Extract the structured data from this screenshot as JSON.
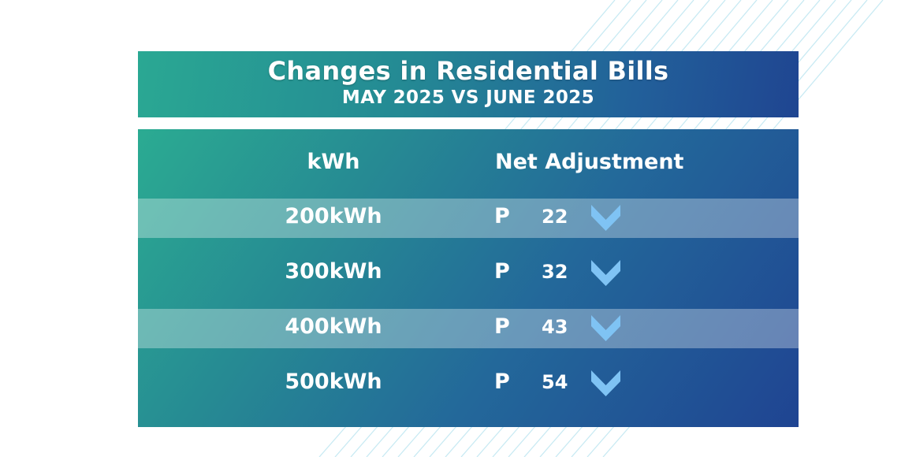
{
  "chart_data": {
    "type": "table",
    "title": "Changes in Residential Bills",
    "subtitle": "MAY 2025 VS JUNE 2025",
    "columns": [
      "kWh",
      "Net Adjustment"
    ],
    "rows": [
      {
        "kwh": "200kWh",
        "currency": "P",
        "value": "22",
        "direction": "down"
      },
      {
        "kwh": "300kWh",
        "currency": "P",
        "value": "32",
        "direction": "down"
      },
      {
        "kwh": "400kWh",
        "currency": "P",
        "value": "43",
        "direction": "down"
      },
      {
        "kwh": "500kWh",
        "currency": "P",
        "value": "54",
        "direction": "down"
      }
    ],
    "arrow_icon": "chevron-down-icon",
    "colors": {
      "gradient_start": "#2aa893",
      "gradient_end": "#1f4591",
      "arrow": "#7fc3f4",
      "stripe_lines": "#c8eaf3",
      "text": "#ffffff"
    }
  }
}
